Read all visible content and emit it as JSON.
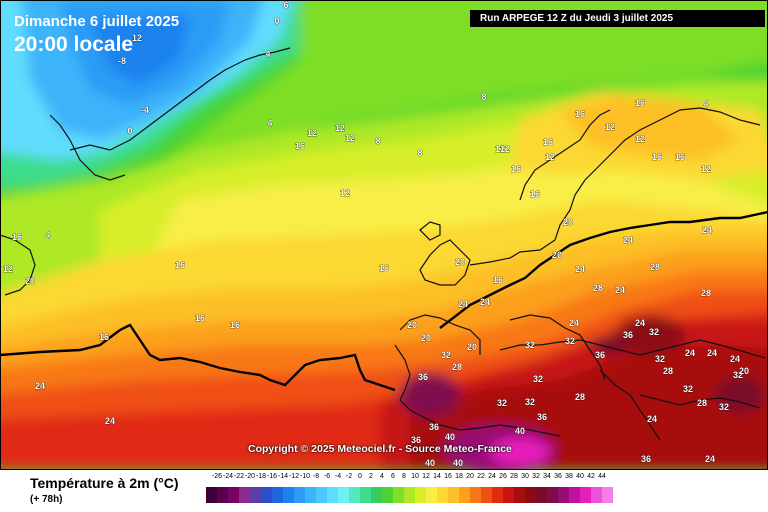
{
  "header": {
    "date": "Dimanche 6 juillet 2025",
    "time": "20:00 locale",
    "run": "Run ARPEGE 12 Z du Jeudi 3 juillet 2025"
  },
  "copyright": "Copyright © 2025 Meteociel.fr - Source Meteo-France",
  "footer": {
    "variable": "Température à 2m (°C)",
    "lead_time": "(+ 78h)"
  },
  "scale": {
    "labels": [
      "-26",
      "-24",
      "-22",
      "-20",
      "-18",
      "-16",
      "-14",
      "-12",
      "-10",
      "-8",
      "-6",
      "-4",
      "-2",
      "0",
      "2",
      "4",
      "6",
      "8",
      "10",
      "12",
      "14",
      "16",
      "18",
      "20",
      "22",
      "24",
      "26",
      "28",
      "30",
      "32",
      "34",
      "36",
      "38",
      "40",
      "42",
      "44"
    ],
    "colors": [
      "#3c0038",
      "#5c004e",
      "#7a0066",
      "#8e2a8e",
      "#5a3eaa",
      "#2c4ec8",
      "#1e66dc",
      "#1e82ee",
      "#2a9cf6",
      "#3cb4fa",
      "#4ec8fc",
      "#60dcfc",
      "#72eef6",
      "#56e6c0",
      "#3edc8e",
      "#32d05a",
      "#4cd232",
      "#7ede28",
      "#aee826",
      "#d8ee2a",
      "#f8ee46",
      "#fcd832",
      "#fcc028",
      "#fca01e",
      "#f87818",
      "#f05014",
      "#e02c14",
      "#c81414",
      "#a80c0c",
      "#8c0a14",
      "#7a0a2c",
      "#800a4e",
      "#980c74",
      "#c2129a",
      "#e61ebc",
      "#f050d6",
      "#f87ce6"
    ]
  },
  "map_labels": [
    {
      "id": "l01",
      "text": "12"
    },
    {
      "id": "l02",
      "text": "6"
    },
    {
      "id": "l03",
      "text": "0"
    },
    {
      "id": "l04",
      "text": "4"
    },
    {
      "id": "l05",
      "text": "-8"
    },
    {
      "id": "l06",
      "text": "-4"
    },
    {
      "id": "l07",
      "text": "0"
    },
    {
      "id": "l08",
      "text": "4"
    },
    {
      "id": "l09",
      "text": "12"
    },
    {
      "id": "l10",
      "text": "16"
    },
    {
      "id": "l11",
      "text": "12"
    },
    {
      "id": "l12",
      "text": "12"
    },
    {
      "id": "l13",
      "text": "8"
    },
    {
      "id": "l14",
      "text": "8"
    },
    {
      "id": "l15",
      "text": "8"
    },
    {
      "id": "l16",
      "text": "12"
    },
    {
      "id": "l17",
      "text": "12"
    },
    {
      "id": "l18",
      "text": "16"
    },
    {
      "id": "l19",
      "text": "16"
    },
    {
      "id": "l20",
      "text": "12"
    },
    {
      "id": "l21",
      "text": "16"
    },
    {
      "id": "l22",
      "text": "12"
    },
    {
      "id": "l23",
      "text": "16"
    },
    {
      "id": "l24",
      "text": "12"
    },
    {
      "id": "l25",
      "text": "12"
    },
    {
      "id": "l26",
      "text": "4"
    },
    {
      "id": "l27",
      "text": "16"
    },
    {
      "id": "l28",
      "text": "12"
    },
    {
      "id": "l29",
      "text": "20"
    },
    {
      "id": "l30",
      "text": "16"
    },
    {
      "id": "l31",
      "text": "16"
    },
    {
      "id": "l32",
      "text": "12"
    },
    {
      "id": "l33",
      "text": "20"
    },
    {
      "id": "l34",
      "text": "16"
    },
    {
      "id": "l35",
      "text": "16"
    },
    {
      "id": "l36",
      "text": "20"
    },
    {
      "id": "l37",
      "text": "24"
    },
    {
      "id": "l38",
      "text": "24"
    },
    {
      "id": "l39",
      "text": "28"
    },
    {
      "id": "l40",
      "text": "24"
    },
    {
      "id": "l41",
      "text": "16"
    },
    {
      "id": "l42",
      "text": "24"
    },
    {
      "id": "l43",
      "text": "28"
    },
    {
      "id": "l44",
      "text": "24"
    },
    {
      "id": "l45",
      "text": "24"
    },
    {
      "id": "l46",
      "text": "24"
    },
    {
      "id": "l47",
      "text": "28"
    },
    {
      "id": "l48",
      "text": "16"
    },
    {
      "id": "l49",
      "text": "20"
    },
    {
      "id": "l50",
      "text": "24"
    },
    {
      "id": "l51",
      "text": "20"
    },
    {
      "id": "l52",
      "text": "20"
    },
    {
      "id": "l53",
      "text": "32"
    },
    {
      "id": "l54",
      "text": "28"
    },
    {
      "id": "l55",
      "text": "32"
    },
    {
      "id": "l56",
      "text": "32"
    },
    {
      "id": "l57",
      "text": "36"
    },
    {
      "id": "l58",
      "text": "32"
    },
    {
      "id": "l59",
      "text": "32"
    },
    {
      "id": "l60",
      "text": "36"
    },
    {
      "id": "l61",
      "text": "32"
    },
    {
      "id": "l62",
      "text": "24"
    },
    {
      "id": "l63",
      "text": "24"
    },
    {
      "id": "l64",
      "text": "24"
    },
    {
      "id": "l65",
      "text": "32"
    },
    {
      "id": "l66",
      "text": "36"
    },
    {
      "id": "l67",
      "text": "32"
    },
    {
      "id": "l68",
      "text": "32"
    },
    {
      "id": "l69",
      "text": "36"
    },
    {
      "id": "l70",
      "text": "40"
    },
    {
      "id": "l71",
      "text": "28"
    },
    {
      "id": "l72",
      "text": "36"
    },
    {
      "id": "l73",
      "text": "36"
    },
    {
      "id": "l74",
      "text": "40"
    },
    {
      "id": "l75",
      "text": "40"
    },
    {
      "id": "l76",
      "text": "24"
    },
    {
      "id": "l77",
      "text": "28"
    },
    {
      "id": "l78",
      "text": "32"
    },
    {
      "id": "l79",
      "text": "28"
    },
    {
      "id": "l80",
      "text": "32"
    },
    {
      "id": "l81",
      "text": "24"
    },
    {
      "id": "l82",
      "text": "16"
    },
    {
      "id": "l83",
      "text": "16"
    },
    {
      "id": "l84",
      "text": "16"
    },
    {
      "id": "l85",
      "text": "24"
    },
    {
      "id": "l86",
      "text": "20"
    },
    {
      "id": "l87",
      "text": "4"
    },
    {
      "id": "l88",
      "text": "36"
    },
    {
      "id": "l89",
      "text": "40"
    },
    {
      "id": "l90",
      "text": "20"
    },
    {
      "id": "l91",
      "text": "24"
    }
  ]
}
